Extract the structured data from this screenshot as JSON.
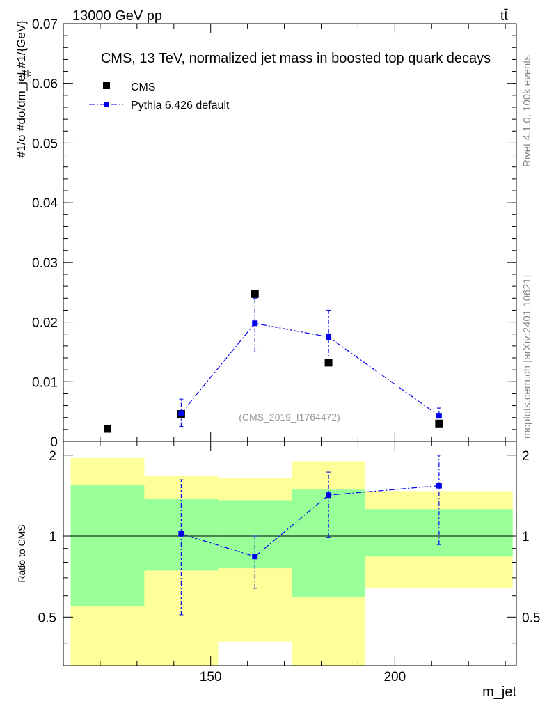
{
  "header": {
    "energy_label": "13000 GeV pp",
    "process_label": "tt̄"
  },
  "side_labels": {
    "rivet": "Rivet 4.1.0,  100k events",
    "mcplots": "mcplots.cern.ch [arXiv:2401.10621]"
  },
  "colors": {
    "data": "#000000",
    "mc": "#0000ee",
    "band_inner": "#99ff99",
    "band_outer": "#ffff99"
  },
  "chart_data": [
    {
      "type": "scatter",
      "panel": "main",
      "title": "CMS, 13 TeV, normalized jet mass in boosted top quark decays",
      "watermark": "(CMS_2019_I1764472)",
      "ylabel": "#1/σ #dσ/dm_jet #1/{GeV}",
      "xlim": [
        110,
        233
      ],
      "ylim": [
        0,
        0.07
      ],
      "yticks": [
        0,
        0.01,
        0.02,
        0.03,
        0.04,
        0.05,
        0.06,
        0.07
      ],
      "ytick_labels": [
        "0",
        "0.01",
        "0.02",
        "0.03",
        "0.04",
        "0.05",
        "0.06",
        "0.07"
      ],
      "legend_position": "top-left",
      "series": [
        {
          "name": "CMS",
          "style": "markers",
          "x": [
            122,
            142,
            162,
            182,
            212
          ],
          "y": [
            0.0021,
            0.0046,
            0.0247,
            0.0132,
            0.003
          ]
        },
        {
          "name": "Pythia 6.426 default",
          "style": "dash-dot line with markers and error bars",
          "x": [
            142,
            162,
            182,
            212
          ],
          "y": [
            0.0047,
            0.0198,
            0.0175,
            0.0043
          ],
          "err_low": [
            0.0022,
            0.0048,
            0.0043,
            0.0015
          ],
          "err_high": [
            0.0024,
            0.0042,
            0.0045,
            0.0013
          ]
        }
      ]
    },
    {
      "type": "line",
      "panel": "ratio",
      "ylabel": "Ratio to CMS",
      "xlabel": "m_jet",
      "xlim": [
        110,
        233
      ],
      "ylim": [
        0.33,
        2.25
      ],
      "yticks": [
        0.5,
        1,
        2
      ],
      "ytick_labels": [
        "0.5",
        "1",
        "2"
      ],
      "xticks": [
        150,
        200
      ],
      "xtick_labels": [
        "150",
        "200"
      ],
      "reference_line": 1,
      "bands": {
        "bin_edges": [
          112,
          132,
          152,
          172,
          192,
          232
        ],
        "inner_low": [
          0.55,
          0.745,
          0.76,
          0.595,
          0.84
        ],
        "inner_high": [
          1.545,
          1.38,
          1.36,
          1.49,
          1.26
        ],
        "outer_low": [
          0.33,
          0.33,
          0.405,
          0.33,
          0.64
        ],
        "outer_high": [
          1.95,
          1.68,
          1.65,
          1.9,
          1.47
        ]
      },
      "series": [
        {
          "name": "Pythia 6.426 default",
          "x": [
            142,
            162,
            182,
            212
          ],
          "y": [
            1.02,
            0.84,
            1.42,
            1.54
          ],
          "err_low": [
            0.51,
            0.2,
            0.43,
            0.61
          ],
          "err_high": [
            0.6,
            0.16,
            0.31,
            0.46
          ]
        }
      ]
    }
  ]
}
